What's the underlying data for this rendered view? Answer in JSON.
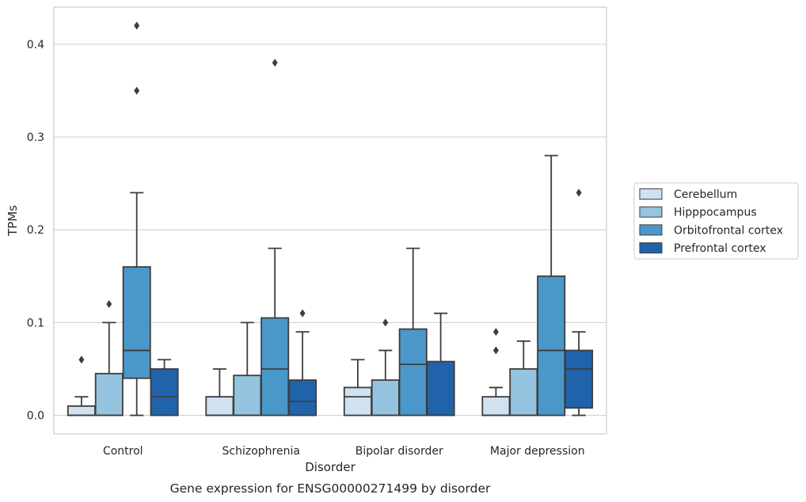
{
  "chart_data": {
    "type": "box",
    "caption": "Gene expression for ENSG00000271499 by disorder",
    "xlabel": "Disorder",
    "ylabel": "TPMs",
    "ylim": [
      -0.02,
      0.44
    ],
    "yticks": [
      0.0,
      0.1,
      0.2,
      0.3,
      0.4
    ],
    "ytick_labels": [
      "0.0",
      "0.1",
      "0.2",
      "0.3",
      "0.4"
    ],
    "grid": "horizontal",
    "legend_position": "right",
    "categories": [
      "Control",
      "Schizophrenia",
      "Bipolar disorder",
      "Major depression"
    ],
    "series": [
      {
        "name": "Cerebellum",
        "color": "#d0e1f2",
        "boxes": [
          {
            "whislo": 0.0,
            "q1": 0.0,
            "med": 0.0,
            "q3": 0.01,
            "whishi": 0.02,
            "fliers": [
              0.06
            ]
          },
          {
            "whislo": 0.0,
            "q1": 0.0,
            "med": 0.0,
            "q3": 0.02,
            "whishi": 0.05,
            "fliers": []
          },
          {
            "whislo": 0.0,
            "q1": 0.0,
            "med": 0.02,
            "q3": 0.03,
            "whishi": 0.06,
            "fliers": []
          },
          {
            "whislo": 0.0,
            "q1": 0.0,
            "med": 0.0,
            "q3": 0.02,
            "whishi": 0.03,
            "fliers": [
              0.07,
              0.09
            ]
          }
        ]
      },
      {
        "name": "Hipppocampus",
        "color": "#94c4df",
        "boxes": [
          {
            "whislo": 0.0,
            "q1": 0.0,
            "med": 0.0,
            "q3": 0.045,
            "whishi": 0.1,
            "fliers": [
              0.12
            ]
          },
          {
            "whislo": 0.0,
            "q1": 0.0,
            "med": 0.0,
            "q3": 0.043,
            "whishi": 0.1,
            "fliers": []
          },
          {
            "whislo": 0.0,
            "q1": 0.0,
            "med": 0.0,
            "q3": 0.038,
            "whishi": 0.07,
            "fliers": [
              0.1
            ]
          },
          {
            "whislo": 0.0,
            "q1": 0.0,
            "med": 0.0,
            "q3": 0.05,
            "whishi": 0.08,
            "fliers": []
          }
        ]
      },
      {
        "name": "Orbitofrontal cortex",
        "color": "#4a98c9",
        "boxes": [
          {
            "whislo": 0.0,
            "q1": 0.04,
            "med": 0.07,
            "q3": 0.16,
            "whishi": 0.24,
            "fliers": [
              0.35,
              0.42
            ]
          },
          {
            "whislo": 0.0,
            "q1": 0.0,
            "med": 0.05,
            "q3": 0.105,
            "whishi": 0.18,
            "fliers": [
              0.38
            ]
          },
          {
            "whislo": 0.0,
            "q1": 0.0,
            "med": 0.055,
            "q3": 0.093,
            "whishi": 0.18,
            "fliers": []
          },
          {
            "whislo": 0.0,
            "q1": 0.0,
            "med": 0.07,
            "q3": 0.15,
            "whishi": 0.28,
            "fliers": []
          }
        ]
      },
      {
        "name": "Prefrontal cortex",
        "color": "#2163aa",
        "boxes": [
          {
            "whislo": 0.0,
            "q1": 0.0,
            "med": 0.02,
            "q3": 0.05,
            "whishi": 0.06,
            "fliers": []
          },
          {
            "whislo": 0.0,
            "q1": 0.0,
            "med": 0.015,
            "q3": 0.038,
            "whishi": 0.09,
            "fliers": [
              0.11
            ]
          },
          {
            "whislo": 0.0,
            "q1": 0.0,
            "med": 0.0,
            "q3": 0.058,
            "whishi": 0.11,
            "fliers": []
          },
          {
            "whislo": 0.0,
            "q1": 0.008,
            "med": 0.05,
            "q3": 0.07,
            "whishi": 0.09,
            "fliers": [
              0.24
            ]
          }
        ]
      }
    ]
  }
}
